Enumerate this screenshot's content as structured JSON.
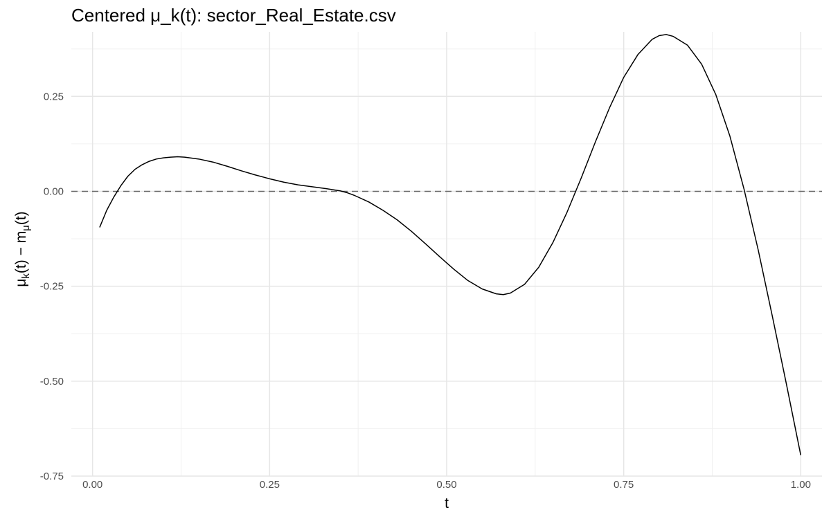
{
  "chart_data": {
    "type": "line",
    "title": "Centered μ_k(t): sector_Real_Estate.csv",
    "xlabel": "t",
    "ylabel": {
      "base": "μ",
      "sub1": "k",
      "mid": "(t) − m",
      "sub2": "μ",
      "end": "(t)"
    },
    "xlim": [
      -0.03,
      1.03
    ],
    "ylim": [
      -0.75,
      0.42
    ],
    "x_ticks": [
      0.0,
      0.25,
      0.5,
      0.75,
      1.0
    ],
    "x_tick_labels": [
      "0.00",
      "0.25",
      "0.50",
      "0.75",
      "1.00"
    ],
    "y_ticks": [
      -0.75,
      -0.5,
      -0.25,
      0.0,
      0.25
    ],
    "y_tick_labels": [
      "-0.75",
      "-0.50",
      "-0.25",
      "0.00",
      "0.25"
    ],
    "grid": true,
    "reference_line": {
      "y": 0.0,
      "style": "dashed",
      "color": "#666666"
    },
    "series": [
      {
        "color": "#000000",
        "x": [
          0.01,
          0.02,
          0.03,
          0.04,
          0.05,
          0.06,
          0.07,
          0.08,
          0.09,
          0.1,
          0.11,
          0.12,
          0.13,
          0.15,
          0.17,
          0.19,
          0.21,
          0.23,
          0.25,
          0.27,
          0.29,
          0.31,
          0.33,
          0.35,
          0.36,
          0.37,
          0.39,
          0.41,
          0.43,
          0.45,
          0.47,
          0.49,
          0.51,
          0.53,
          0.55,
          0.57,
          0.58,
          0.59,
          0.61,
          0.63,
          0.65,
          0.67,
          0.69,
          0.71,
          0.73,
          0.75,
          0.77,
          0.79,
          0.8,
          0.81,
          0.82,
          0.84,
          0.86,
          0.88,
          0.9,
          0.92,
          0.94,
          0.96,
          0.98,
          1.0
        ],
        "y": [
          -0.095,
          -0.05,
          -0.015,
          0.015,
          0.04,
          0.058,
          0.07,
          0.079,
          0.085,
          0.088,
          0.09,
          0.091,
          0.09,
          0.085,
          0.077,
          0.066,
          0.054,
          0.043,
          0.033,
          0.024,
          0.017,
          0.012,
          0.007,
          0.001,
          -0.004,
          -0.011,
          -0.028,
          -0.05,
          -0.075,
          -0.105,
          -0.138,
          -0.172,
          -0.205,
          -0.235,
          -0.257,
          -0.27,
          -0.272,
          -0.268,
          -0.245,
          -0.2,
          -0.135,
          -0.055,
          0.035,
          0.13,
          0.22,
          0.3,
          0.36,
          0.4,
          0.41,
          0.413,
          0.408,
          0.385,
          0.335,
          0.255,
          0.145,
          0.005,
          -0.155,
          -0.33,
          -0.51,
          -0.695
        ]
      }
    ]
  }
}
